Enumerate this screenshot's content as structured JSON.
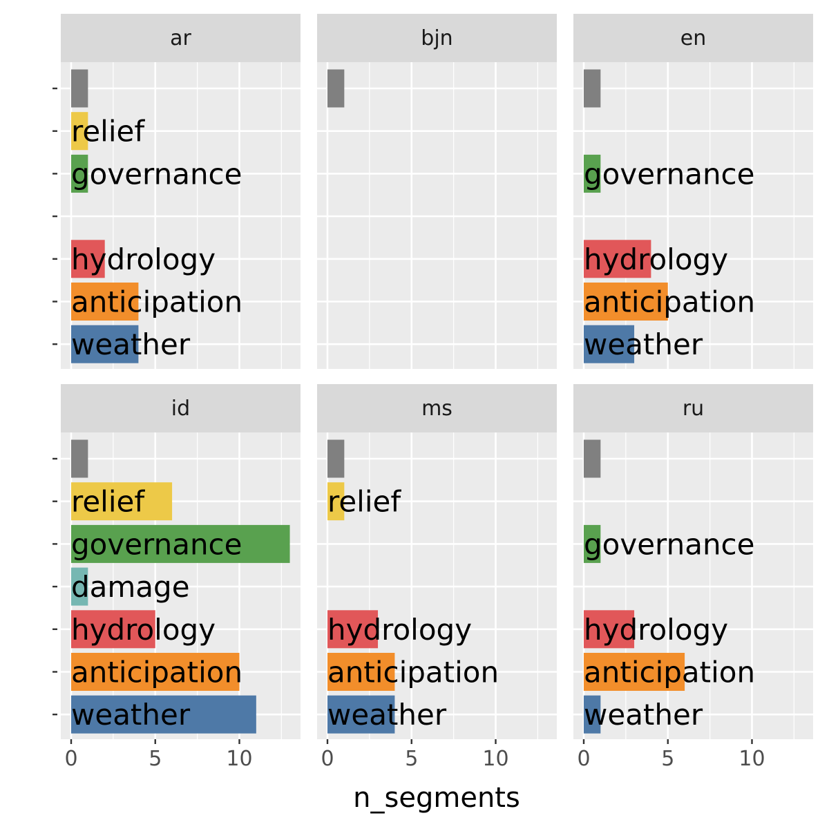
{
  "chart_data": {
    "type": "bar",
    "orientation": "horizontal",
    "facet_by": "language",
    "categories": [
      "",
      "relief",
      "governance",
      "damage",
      "hydrology",
      "anticipation",
      "weather"
    ],
    "category_colors": {
      "": "#808080",
      "relief": "#EDC948",
      "governance": "#59A14F",
      "damage": "#76B7B2",
      "hydrology": "#E15759",
      "anticipation": "#F28E2B",
      "weather": "#4E79A7"
    },
    "xlabel": "n_segments",
    "ylabel": "",
    "xlim": [
      0,
      13.5
    ],
    "x_ticks": [
      0,
      5,
      10
    ],
    "grid": true,
    "legend": "none",
    "panels": [
      {
        "name": "ar",
        "bars": [
          {
            "category": "",
            "value": 1
          },
          {
            "category": "relief",
            "value": 1
          },
          {
            "category": "governance",
            "value": 1
          },
          {
            "category": "hydrology",
            "value": 2
          },
          {
            "category": "anticipation",
            "value": 4
          },
          {
            "category": "weather",
            "value": 4
          }
        ]
      },
      {
        "name": "bjn",
        "bars": [
          {
            "category": "",
            "value": 1
          }
        ]
      },
      {
        "name": "en",
        "bars": [
          {
            "category": "",
            "value": 1
          },
          {
            "category": "governance",
            "value": 1
          },
          {
            "category": "hydrology",
            "value": 4
          },
          {
            "category": "anticipation",
            "value": 5
          },
          {
            "category": "weather",
            "value": 3
          }
        ]
      },
      {
        "name": "id",
        "bars": [
          {
            "category": "",
            "value": 1
          },
          {
            "category": "relief",
            "value": 6
          },
          {
            "category": "governance",
            "value": 13
          },
          {
            "category": "damage",
            "value": 1
          },
          {
            "category": "hydrology",
            "value": 5
          },
          {
            "category": "anticipation",
            "value": 10
          },
          {
            "category": "weather",
            "value": 11
          }
        ]
      },
      {
        "name": "ms",
        "bars": [
          {
            "category": "",
            "value": 1
          },
          {
            "category": "relief",
            "value": 1
          },
          {
            "category": "hydrology",
            "value": 3
          },
          {
            "category": "anticipation",
            "value": 4
          },
          {
            "category": "weather",
            "value": 4
          }
        ]
      },
      {
        "name": "ru",
        "bars": [
          {
            "category": "",
            "value": 1
          },
          {
            "category": "governance",
            "value": 1
          },
          {
            "category": "hydrology",
            "value": 3
          },
          {
            "category": "anticipation",
            "value": 6
          },
          {
            "category": "weather",
            "value": 1
          }
        ]
      }
    ]
  }
}
